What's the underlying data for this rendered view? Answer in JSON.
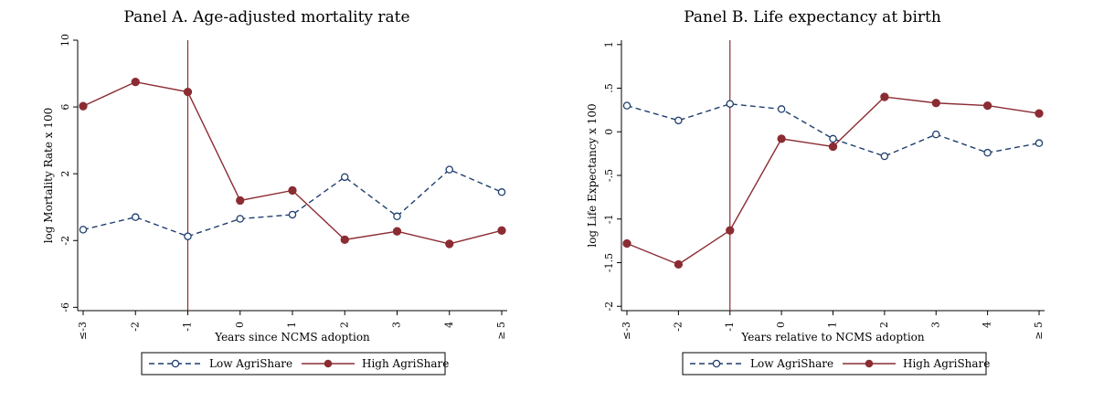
{
  "chart_data": [
    {
      "type": "line",
      "title": "Panel A. Age-adjusted mortality rate",
      "xlabel": "Years since NCMS adoption",
      "ylabel": "log Mortality Rate x 100",
      "categories": [
        "≤-3",
        "-2",
        "-1",
        "0",
        "1",
        "2",
        "3",
        "4",
        "≥ 5"
      ],
      "yticks": [
        -6,
        -2,
        2,
        6,
        10
      ],
      "ylim": [
        -6.2,
        10
      ],
      "vline_category": "-1",
      "grid": false,
      "legend_position": "bottom",
      "series": [
        {
          "name": "Low AgriShare",
          "style": "dashed-hollow",
          "color": "#1f3f6e",
          "values": [
            -1.35,
            -0.6,
            -1.75,
            -0.7,
            -0.45,
            1.8,
            -0.55,
            2.25,
            0.9
          ]
        },
        {
          "name": "High AgriShare",
          "style": "solid-filled",
          "color": "#8b2c33",
          "values": [
            6.05,
            7.5,
            6.9,
            0.4,
            1.0,
            -1.95,
            -1.45,
            -2.2,
            -1.4
          ]
        }
      ]
    },
    {
      "type": "line",
      "title": "Panel B. Life expectancy at birth",
      "xlabel": "Years relative to NCMS adoption",
      "ylabel": "log Life Expectancy x 100",
      "categories": [
        "≤-3",
        "-2",
        "-1",
        "0",
        "1",
        "2",
        "3",
        "4",
        "≥ 5"
      ],
      "yticks": [
        -2,
        -1.5,
        -1,
        -0.5,
        0,
        0.5,
        1
      ],
      "ytick_labels": [
        "-2",
        "-1.5",
        "-1",
        "-.5",
        "0",
        ".5",
        "1"
      ],
      "ylim": [
        -2.05,
        1.05
      ],
      "vline_category": "-1",
      "grid": false,
      "legend_position": "bottom",
      "series": [
        {
          "name": "Low AgriShare",
          "style": "dashed-hollow",
          "color": "#1f3f6e",
          "values": [
            0.3,
            0.13,
            0.32,
            0.26,
            -0.08,
            -0.28,
            -0.03,
            -0.24,
            -0.13
          ]
        },
        {
          "name": "High AgriShare",
          "style": "solid-filled",
          "color": "#8b2c33",
          "values": [
            -1.28,
            -1.52,
            -1.13,
            -0.08,
            -0.17,
            0.4,
            0.33,
            0.3,
            0.21
          ]
        }
      ]
    }
  ]
}
